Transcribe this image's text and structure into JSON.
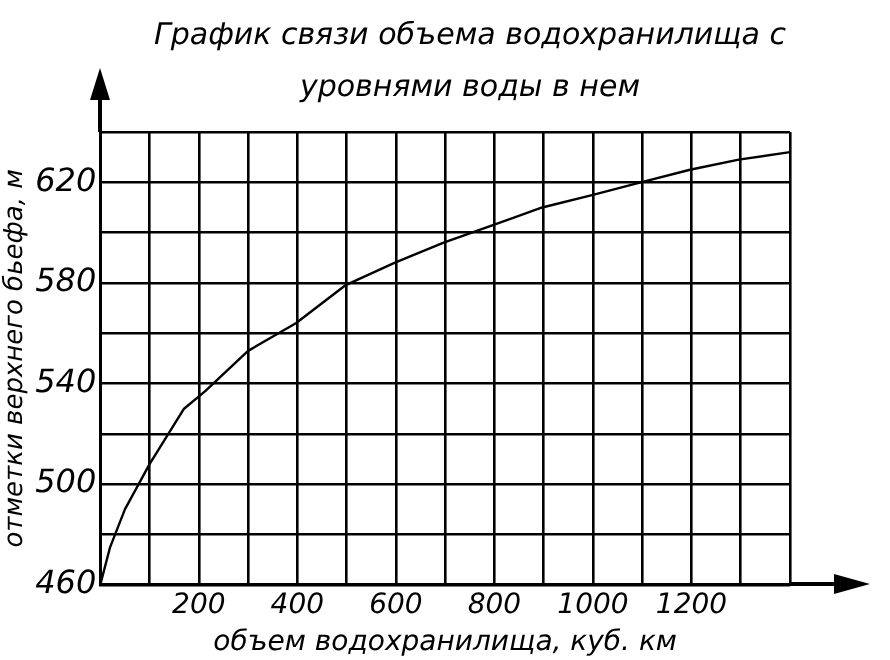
{
  "chart_data": {
    "type": "line",
    "title": "График связи объема водохранилища с уровнями воды в нем",
    "xlabel": "объем водохранилища, куб. км",
    "ylabel": "отметки верхнего бьефа, м",
    "x": [
      0,
      20,
      50,
      100,
      170,
      213,
      300,
      397,
      497,
      597,
      697,
      797,
      897,
      1000,
      1097,
      1197,
      1296,
      1400
    ],
    "series": [
      {
        "color": "#000000",
        "values": [
          460,
          475,
          490,
          508,
          530,
          537,
          553,
          564,
          579,
          588,
          596,
          603,
          610,
          615,
          620,
          625,
          629,
          632
        ]
      }
    ],
    "xlim": [
      0,
      1400
    ],
    "xticks": [
      {
        "value": 0,
        "label": null
      },
      {
        "value": 100,
        "label": null
      },
      200,
      {
        "value": 300,
        "label": null
      },
      400,
      {
        "value": 500,
        "label": null
      },
      600,
      {
        "value": 700,
        "label": null
      },
      800,
      {
        "value": 900,
        "label": null
      },
      1000,
      {
        "value": 1100,
        "label": null
      },
      1200,
      {
        "value": 1300,
        "label": null
      },
      {
        "value": 1400,
        "label": null
      }
    ],
    "ylim": [
      460,
      640
    ],
    "yticks": [
      460,
      {
        "value": 480,
        "label": null
      },
      500,
      {
        "value": 520,
        "label": null
      },
      540,
      {
        "value": 560,
        "label": null
      },
      580,
      {
        "value": 600,
        "label": null
      },
      620,
      {
        "value": 640,
        "label": null
      }
    ],
    "grid": true,
    "legend": false
  }
}
